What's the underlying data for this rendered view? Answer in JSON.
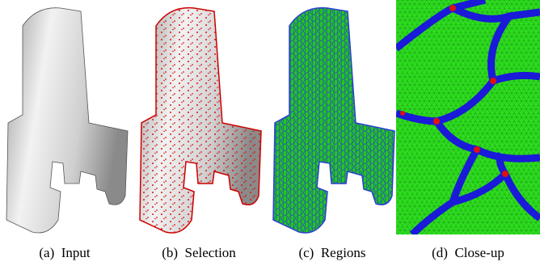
{
  "figure": {
    "captions": [
      "(a)  Input",
      "(b)  Selection",
      "(c)  Regions",
      "(d)  Close-up"
    ]
  }
}
